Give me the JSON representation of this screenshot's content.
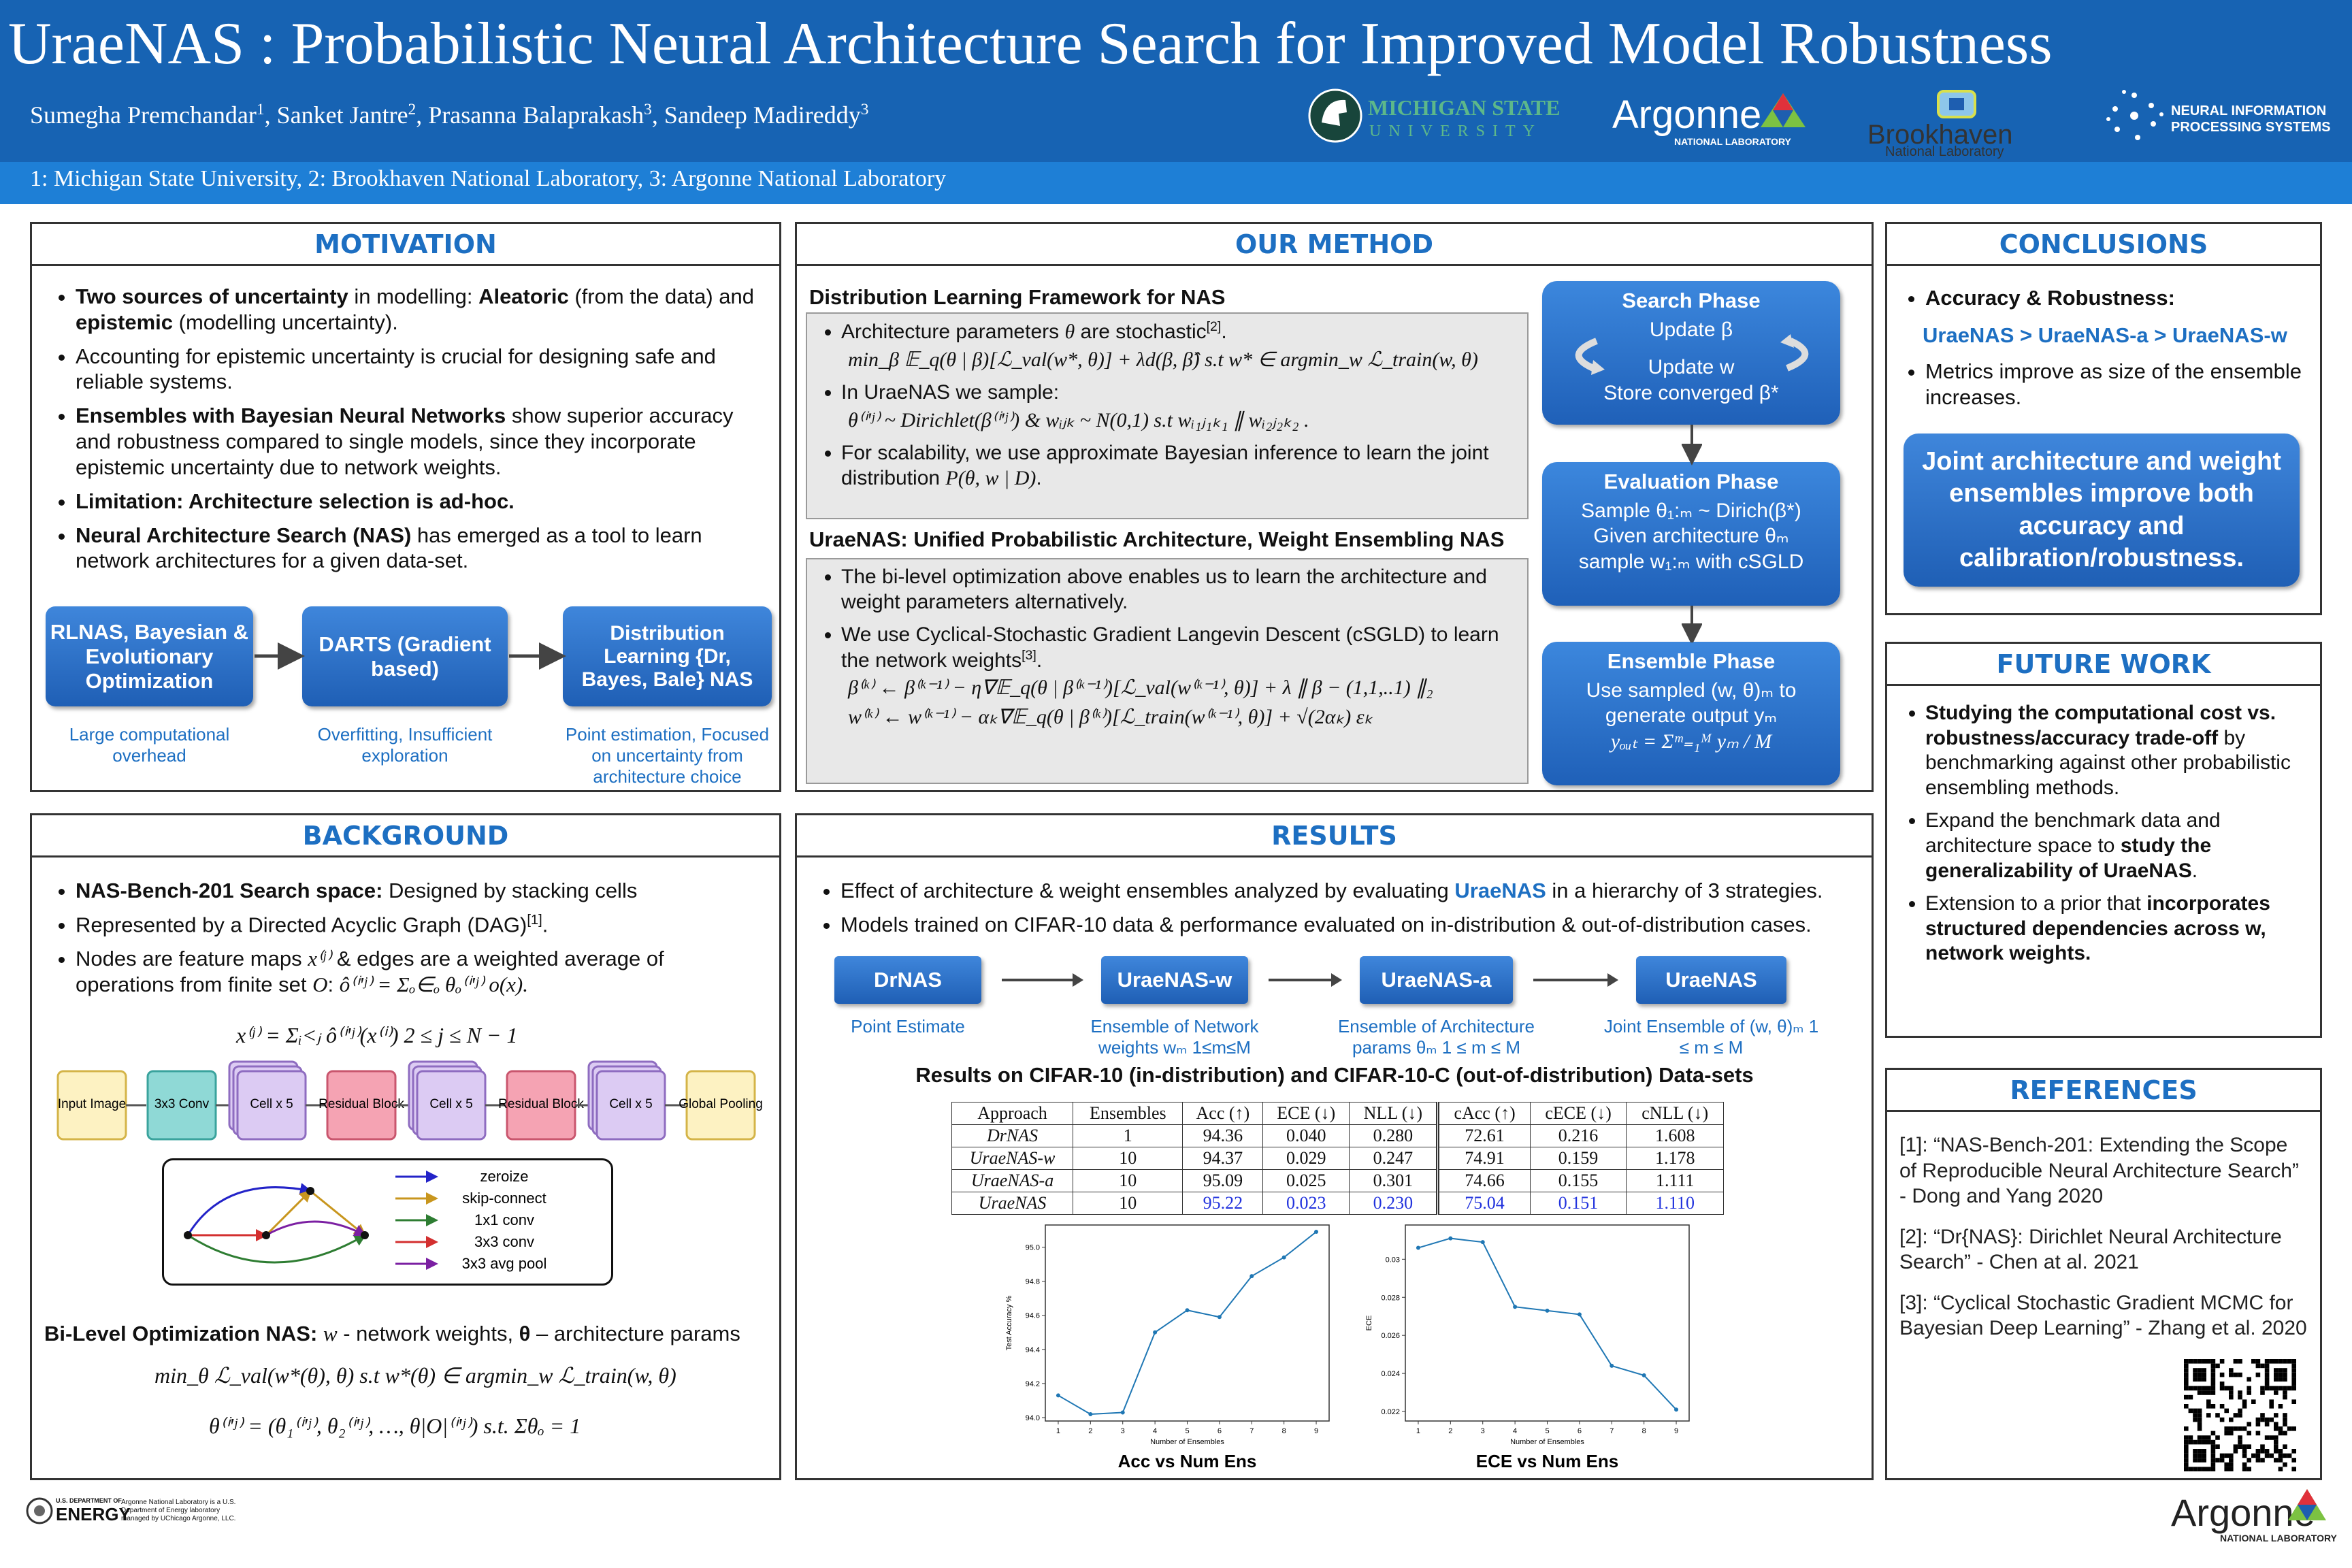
{
  "header": {
    "title": "UraeNAS : Probabilistic Neural Architecture Search for Improved Model Robustness",
    "authors": [
      "Sumegha Premchandar",
      {
        "sup": "1"
      },
      ",  Sanket  Jantre",
      {
        "sup": "2"
      },
      ",  Prasanna Balaprakash",
      {
        "sup": "3"
      },
      ",  Sandeep Madireddy",
      {
        "sup": "3"
      }
    ],
    "affiliations": "1: Michigan State University, 2: Brookhaven National Laboratory, 3: Argonne National Laboratory",
    "logos": {
      "msu_1": "MICHIGAN STATE",
      "msu_2": "UNIVERSITY",
      "argonne": "Argonne",
      "argonne_sub": "NATIONAL LABORATORY",
      "bnl": "Brookhaven",
      "bnl_sub": "National Laboratory",
      "neurips_1": "NEURAL INFORMATION",
      "neurips_2": "PROCESSING SYSTEMS"
    }
  },
  "motivation": {
    "heading": "MOTIVATION",
    "bullets": [
      [
        {
          "bold": "Two sources of uncertainty"
        },
        " in modelling: ",
        {
          "bold": "Aleatoric"
        },
        " (from the data) and ",
        {
          "bold": "epistemic"
        },
        " (modelling uncertainty)."
      ],
      [
        "Accounting for epistemic uncertainty is crucial for designing safe and reliable systems."
      ],
      [
        {
          "bold": "Ensembles with Bayesian Neural Networks"
        },
        " show superior accuracy and robustness compared to single models, since they incorporate epistemic uncertainty due to network weights."
      ],
      [
        {
          "bold": "Limitation: Architecture selection is ad-hoc."
        }
      ],
      [
        {
          "bold": "Neural Architecture Search (NAS)"
        },
        " has emerged as a tool to learn network architectures for a given data-set."
      ]
    ],
    "flow": [
      {
        "label": "RLNAS, Bayesian & Evolutionary Optimization",
        "caption": "Large computational overhead"
      },
      {
        "label": "DARTS (Gradient based)",
        "caption": "Overfitting, Insufficient exploration"
      },
      {
        "label": "Distribution Learning {Dr, Bayes, Bale} NAS",
        "caption": "Point estimation, Focused on uncertainty from architecture choice"
      }
    ]
  },
  "method": {
    "heading": "OUR METHOD",
    "framework_title": "Distribution Learning Framework for NAS",
    "framework": [
      {
        "runs": [
          "Architecture parameters ",
          {
            "math": "θ"
          },
          " are stochastic",
          {
            "sup": "[2]"
          },
          "."
        ],
        "eqs": [
          "min_β 𝔼_q(θ | β)[ℒ_val(w*, θ)] + λd(β, β̂)      s.t w* ∈ argmin_w ℒ_train(w, θ)"
        ]
      },
      {
        "runs": [
          " In UraeNAS we sample:"
        ],
        "eqs": [
          "θ⁽ⁱ'ʲ⁾ ~ Dirichlet(β⁽ⁱ'ʲ⁾) & wᵢⱼₖ ~ N(0,1)   s.t wᵢ₁ⱼ₁ₖ₁ ∥ wᵢ₂ⱼ₂ₖ₂ ."
        ]
      },
      {
        "runs": [
          "For scalability, we use approximate Bayesian inference to learn the joint distribution ",
          {
            "math": "P(θ, w | D)"
          },
          "."
        ],
        "eqs": []
      }
    ],
    "unified_title": "UraeNAS: Unified Probabilistic Architecture, Weight Ensembling NAS",
    "unified": [
      {
        "runs": [
          "The bi-level optimization above enables us to learn the architecture and weight parameters alternatively."
        ],
        "eqs": []
      },
      {
        "runs": [
          "We use Cyclical-Stochastic Gradient Langevin Descent (cSGLD) to learn the network weights",
          {
            "sup": "[3]"
          },
          "."
        ],
        "eqs": [
          "β⁽ᵏ⁾ ← β⁽ᵏ⁻¹⁾ − η∇𝔼_q(θ | β⁽ᵏ⁻¹⁾)[ℒ_val(w⁽ᵏ⁻¹⁾, θ)] + λ ∥ β − (1,1,..1) ∥₂",
          "w⁽ᵏ⁾ ← w⁽ᵏ⁻¹⁾ − αₖ∇𝔼_q(θ | β⁽ᵏ⁾)[ℒ_train(w⁽ᵏ⁻¹⁾, θ)] + √(2αₖ) εₖ"
        ]
      }
    ],
    "phases": [
      {
        "title": "Search Phase",
        "lines": [
          "Update  β",
          "Update w",
          "Store converged β*"
        ]
      },
      {
        "title": "Evaluation Phase",
        "lines": [
          "Sample θ₁:ₘ ~ Dirich(β*)",
          "Given architecture θₘ",
          "sample w₁:ₘ with cSGLD"
        ]
      },
      {
        "title": "Ensemble Phase",
        "lines": [
          "Use sampled (w, θ)ₘ to",
          "generate output yₘ",
          "yₒᵤₜ = Σᵐ₌₁ᴹ yₘ / M"
        ]
      }
    ]
  },
  "conclusions": {
    "heading": "CONCLUSIONS",
    "bullet_1": [
      {
        "bold": "Accuracy & Robustness:"
      }
    ],
    "ranking": "UraeNAS > UraeNAS-a > UraeNAS-w",
    "bullet_2": [
      "Metrics improve as size of the ensemble increases."
    ],
    "callout": "Joint architecture and weight ensembles improve both accuracy and calibration/robustness."
  },
  "future_work": {
    "heading": "FUTURE WORK",
    "bullets": [
      [
        {
          "bold": "Studying the computational cost vs. robustness/accuracy trade-off"
        },
        " by benchmarking against other probabilistic ensembling methods."
      ],
      [
        "Expand the benchmark data and architecture space to ",
        {
          "bold": "study the generalizability of UraeNAS"
        },
        "."
      ],
      [
        "Extension to a prior that ",
        {
          "bold": "incorporates structured dependencies across w, network weights."
        }
      ]
    ]
  },
  "references": {
    "heading": "REFERENCES",
    "items": [
      "[1]: “NAS-Bench-201: Extending the Scope of Reproducible Neural Architecture Search” - Dong and Yang 2020",
      "[2]: “Dr{NAS}: Dirichlet Neural Architecture Search” - Chen at al. 2021",
      "[3]: “Cyclical Stochastic Gradient MCMC for Bayesian Deep Learning” - Zhang et al. 2020"
    ]
  },
  "background": {
    "heading": "BACKGROUND",
    "bullets": [
      [
        {
          "bold": "NAS-Bench-201 Search space:"
        },
        " Designed by stacking cells"
      ],
      [
        "Represented by a Directed Acyclic Graph (DAG)",
        {
          "sup": "[1]"
        },
        "."
      ],
      [
        "Nodes are feature maps ",
        {
          "math": "x⁽ʲ⁾"
        },
        " & edges are a weighted average of operations from finite set ",
        {
          "math": "O"
        },
        ":  ",
        {
          "math": "ô⁽ⁱ'ʲ⁾ = Σₒ∈ₒ θₒ⁽ⁱ'ʲ⁾ o(x)."
        }
      ]
    ],
    "eq": "x⁽ʲ⁾ = Σᵢ<ⱼ ô⁽ⁱ'ʲ⁾(x⁽ⁱ⁾)     2 ≤ j ≤ N − 1",
    "pipeline": [
      "Input Image",
      "3x3 Conv",
      "Cell x 5",
      "Residual Block",
      "Cell x 5",
      "Residual Block",
      "Cell x 5",
      "Global Pooling"
    ],
    "operations": [
      {
        "name": "zeroize",
        "color": "#2323c8"
      },
      {
        "name": "skip-connect",
        "color": "#c8961e"
      },
      {
        "name": "1x1 conv",
        "color": "#2e7d32"
      },
      {
        "name": "3x3 conv",
        "color": "#d32f2f"
      },
      {
        "name": "3x3 avg pool",
        "color": "#7b1fa2"
      }
    ],
    "bilevel": [
      {
        "bold": "Bi-Level Optimization NAS:"
      },
      " ",
      {
        "math": "w"
      },
      " - network weights, ",
      {
        "bold": "θ"
      },
      " – architecture params"
    ],
    "eq2": "min_θ ℒ_val(w*(θ), θ)  s.t  w*(θ) ∈ argmin_w ℒ_train(w, θ)",
    "eq3": "θ⁽ⁱ'ʲ⁾ = (θ₁⁽ⁱ'ʲ⁾, θ₂⁽ⁱ'ʲ⁾, …, θ|O|⁽ⁱ'ʲ⁾)   s.t.  Σθₒ = 1"
  },
  "results": {
    "heading": "RESULTS",
    "bullets": [
      [
        "Effect of architecture & weight ensembles analyzed by evaluating ",
        {
          "blue": "UraeNAS"
        },
        " in a hierarchy of 3 strategies."
      ],
      [
        "Models trained on CIFAR-10 data & performance evaluated on in-distribution & out-of-distribution cases."
      ]
    ],
    "strategies": [
      {
        "label": "DrNAS",
        "caption": "Point Estimate"
      },
      {
        "label": "UraeNAS-w",
        "caption": "Ensemble of Network weights wₘ  1≤m≤M"
      },
      {
        "label": "UraeNAS-a",
        "caption": "Ensemble of Architecture params θₘ  1 ≤ m ≤ M"
      },
      {
        "label": "UraeNAS",
        "caption": "Joint Ensemble of (w, θ)ₘ  1 ≤ m ≤ M"
      }
    ],
    "table": {
      "title": "Results on CIFAR-10 (in-distribution) and CIFAR-10-C (out-of-distribution) Data-sets",
      "header": [
        "Approach",
        "Ensembles",
        "Acc (↑)",
        "ECE (↓)",
        "NLL (↓)",
        "cAcc (↑)",
        "cECE (↓)",
        "cNLL (↓)"
      ],
      "rows": [
        [
          "DrNAS",
          "1",
          "94.36",
          "0.040",
          "0.280",
          "72.61",
          "0.216",
          "1.608"
        ],
        [
          "UraeNAS-w",
          "10",
          "94.37",
          "0.029",
          "0.247",
          "74.91",
          "0.159",
          "1.178"
        ],
        [
          "UraeNAS-a",
          "10",
          "95.09",
          "0.025",
          "0.301",
          "74.66",
          "0.155",
          "1.111"
        ],
        [
          "UraeNAS",
          "10",
          "95.22",
          "0.023",
          "0.230",
          "75.04",
          "0.151",
          "1.110"
        ]
      ]
    },
    "charts": [
      {
        "type": "line",
        "title": "Acc vs Num Ens",
        "xlabel": "Number of Ensembles",
        "ylabel": "Test Accuracy %",
        "color": "#1f77b4",
        "x": [
          1,
          2,
          3,
          4,
          5,
          6,
          7,
          8,
          9
        ],
        "values": [
          94.13,
          94.02,
          94.03,
          94.5,
          94.63,
          94.59,
          94.83,
          94.94,
          95.09
        ],
        "xlim": [
          0.6,
          9.4
        ],
        "ylim": [
          93.98,
          95.13
        ],
        "xticks": [
          1,
          2,
          3,
          4,
          5,
          6,
          7,
          8,
          9
        ],
        "yticks": [
          {
            "value": 94,
            "label": "94.0"
          },
          94.2,
          94.4,
          94.6,
          94.8,
          {
            "value": 95,
            "label": "95.0"
          }
        ]
      },
      {
        "type": "line",
        "title": "ECE vs Num Ens",
        "xlabel": "Number of Ensembles",
        "ylabel": "ECE",
        "color": "#1f77b4",
        "x": [
          1,
          2,
          3,
          4,
          5,
          6,
          7,
          8,
          9
        ],
        "values": [
          0.0306,
          0.0311,
          0.0309,
          0.0275,
          0.0273,
          0.0271,
          0.0244,
          0.0239,
          0.0221
        ],
        "xlim": [
          0.6,
          9.4
        ],
        "ylim": [
          0.0215,
          0.0318
        ],
        "xticks": [
          1,
          2,
          3,
          4,
          5,
          6,
          7,
          8,
          9
        ],
        "yticks": [
          0.022,
          0.024,
          0.026,
          0.028,
          0.03
        ]
      }
    ]
  },
  "footer": {
    "doe_1": "U.S. DEPARTMENT OF",
    "doe_2": "ENERGY",
    "doe_note": "Argonne National Laboratory is a U.S. Department of Energy laboratory managed by UChicago Argonne, LLC.",
    "argonne": "Argonne",
    "argonne_sub": "NATIONAL LABORATORY"
  }
}
